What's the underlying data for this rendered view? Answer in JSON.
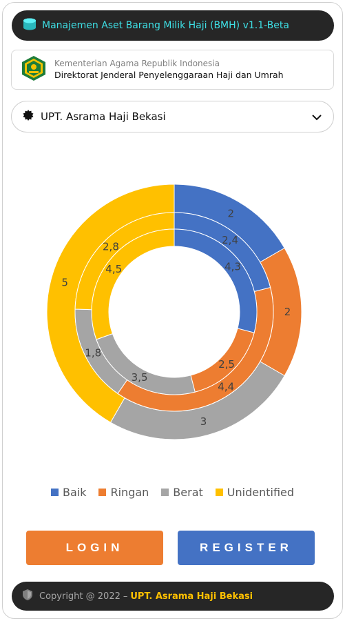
{
  "header": {
    "title": "Manajemen Aset Barang Milik Haji (BMH) v1.1-Beta",
    "icon": "box-icon"
  },
  "org": {
    "ministry": "Kementerian Agama Republik Indonesia",
    "directorate": "Direktorat Jenderal Penyelenggaraan Haji dan Umrah",
    "logo": "kemenag-logo"
  },
  "unit_select": {
    "value": "UPT. Asrama Haji Bekasi",
    "icon": "gear-icon",
    "chevron": "chevron-down-icon"
  },
  "chart_data": {
    "type": "doughnut",
    "title": "",
    "categories": [
      "Baik",
      "Ringan",
      "Berat",
      "Unidentified"
    ],
    "colors": [
      "#4472c4",
      "#ed7d31",
      "#a5a5a5",
      "#ffc000"
    ],
    "series": [
      {
        "values": [
          2,
          2,
          3,
          5
        ]
      },
      {
        "values": [
          2.4,
          4.4,
          1.8,
          2.8
        ]
      },
      {
        "values": [
          4.3,
          2.5,
          3.5,
          4.5
        ]
      }
    ],
    "legend": "bottom"
  },
  "legend": {
    "items": [
      {
        "label": "Baik",
        "color": "#4472c4"
      },
      {
        "label": "Ringan",
        "color": "#ed7d31"
      },
      {
        "label": "Berat",
        "color": "#a5a5a5"
      },
      {
        "label": "Unidentified",
        "color": "#ffc000"
      }
    ]
  },
  "buttons": {
    "login": "LOGIN",
    "register": "REGISTER"
  },
  "footer": {
    "copyright": "Copyright @ 2022",
    "separator": "–",
    "unit": "UPT. Asrama Haji Bekasi",
    "icon": "shield-icon"
  }
}
